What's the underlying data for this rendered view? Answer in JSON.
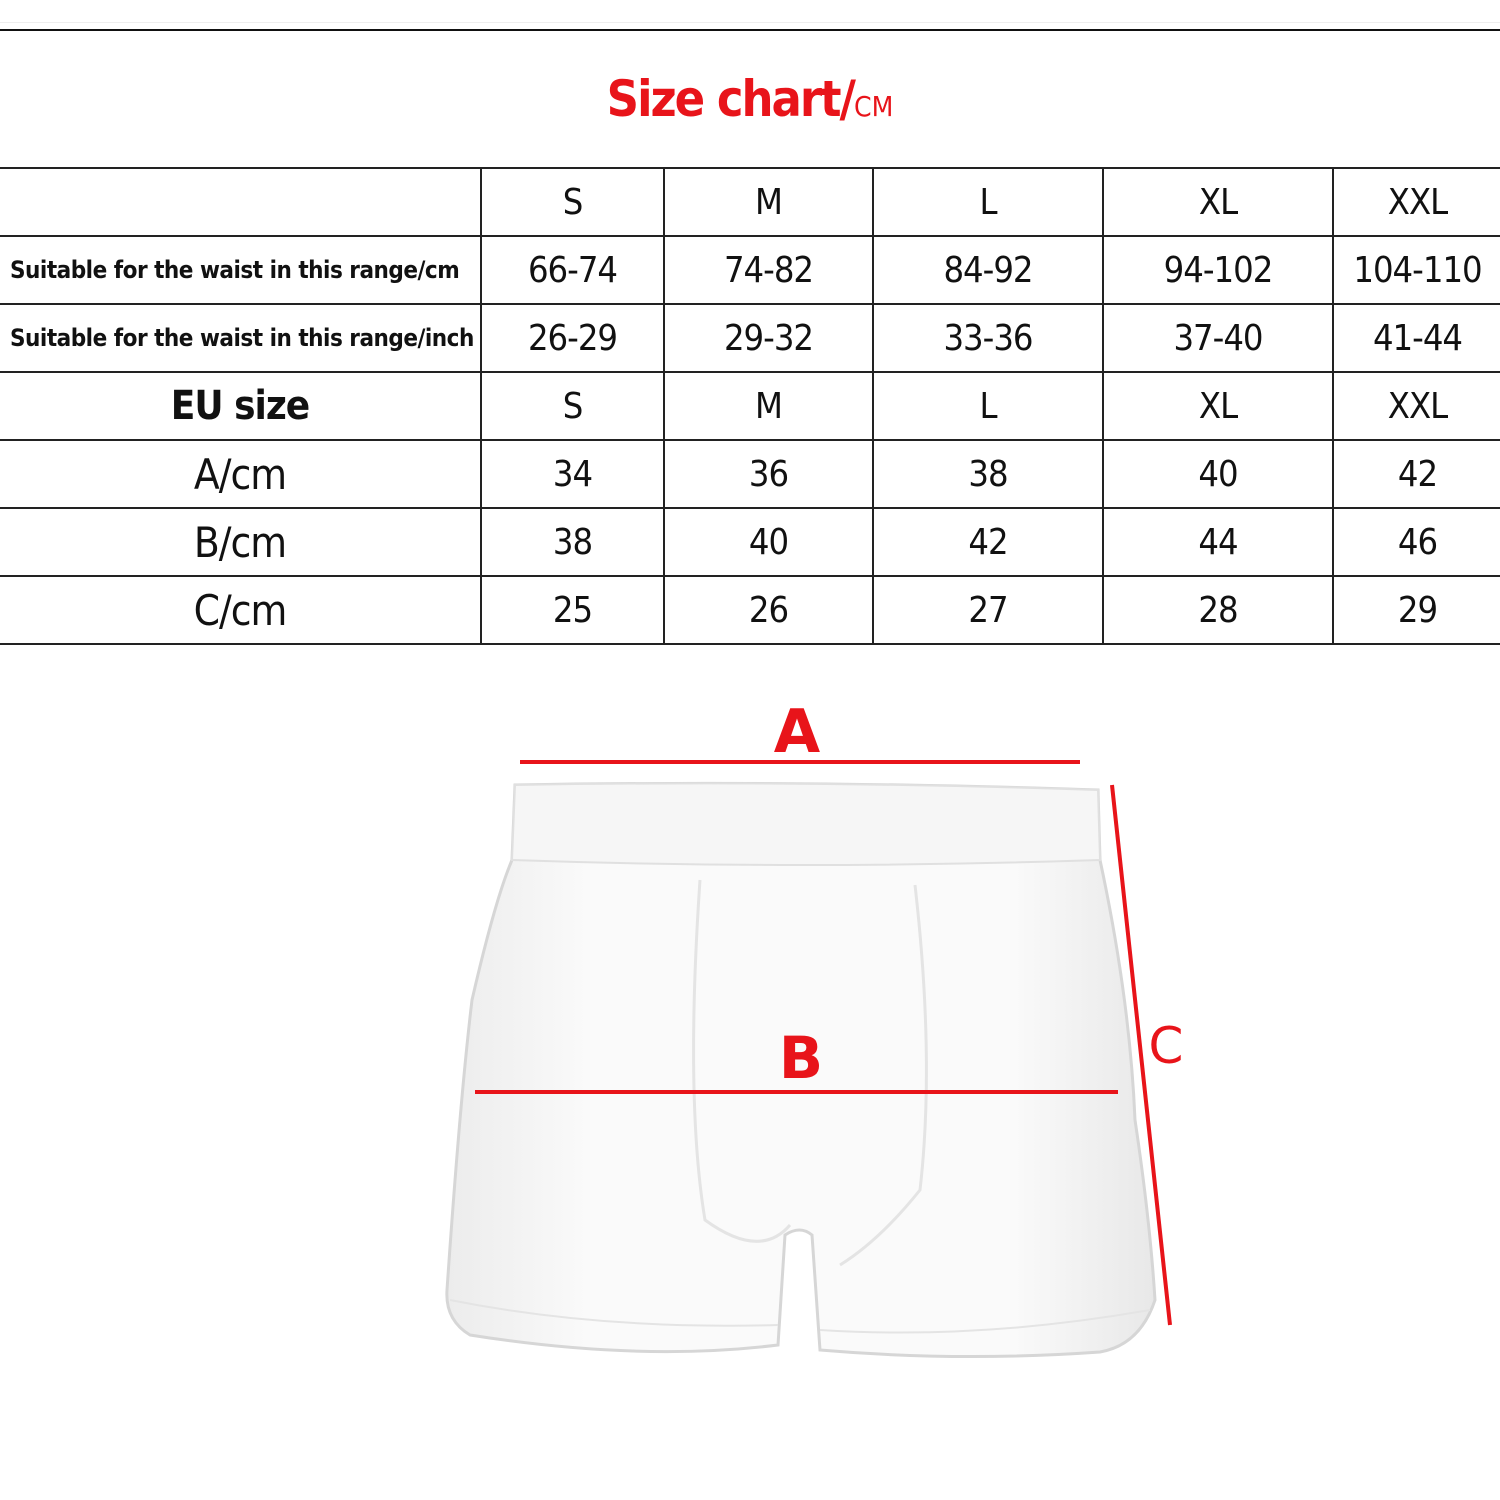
{
  "title": {
    "main": "Size chart/",
    "unit": "CM"
  },
  "table": {
    "header": [
      "",
      "S",
      "M",
      "L",
      "XL",
      "XXL"
    ],
    "rows": [
      {
        "label": "Suitable for the waist in this range/cm",
        "values": [
          "66-74",
          "74-82",
          "84-92",
          "94-102",
          "104-110"
        ]
      },
      {
        "label": "Suitable for the waist in this range/inch",
        "values": [
          "26-29",
          "29-32",
          "33-36",
          "37-40",
          "41-44"
        ]
      },
      {
        "label": "EU size",
        "values": [
          "S",
          "M",
          "L",
          "XL",
          "XXL"
        ]
      },
      {
        "label": "A/cm",
        "values": [
          "34",
          "36",
          "38",
          "40",
          "42"
        ]
      },
      {
        "label": "B/cm",
        "values": [
          "38",
          "40",
          "42",
          "44",
          "46"
        ]
      },
      {
        "label": "C/cm",
        "values": [
          "25",
          "26",
          "27",
          "28",
          "29"
        ]
      }
    ]
  },
  "diagram": {
    "labels": {
      "a": "A",
      "b": "B",
      "c": "C"
    },
    "measure_color": "#e8141a",
    "garment": "white boxer briefs"
  }
}
